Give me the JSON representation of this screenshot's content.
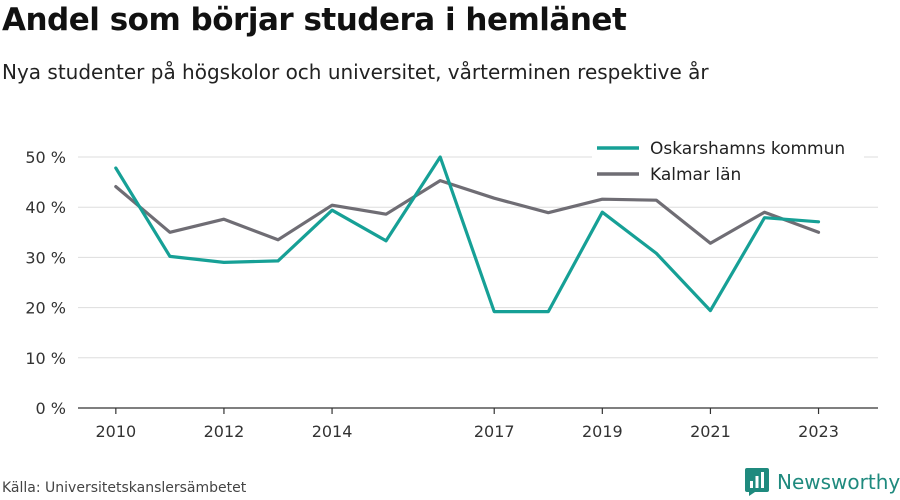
{
  "header": {
    "title": "Andel som börjar studera i hemlänet",
    "subtitle": "Nya studenter på högskolor och universitet, vårterminen respektive år"
  },
  "footer": {
    "source": "Källa: Universitetskanslersämbetet",
    "brand": "Newsworthy",
    "brand_icon": "bar-chart-logo-icon"
  },
  "colors": {
    "accent": "#16a096",
    "secondary": "#6f6d74",
    "grid": "#dddddd",
    "brand": "#1f8a7e"
  },
  "chart_data": {
    "type": "line",
    "x": [
      2010,
      2011,
      2012,
      2013,
      2014,
      2015,
      2016,
      2017,
      2018,
      2019,
      2020,
      2021,
      2022,
      2023
    ],
    "x_tick_labels": [
      "2010",
      "2012",
      "2014",
      "2017",
      "2019",
      "2021",
      "2023"
    ],
    "y_tick_labels": [
      "0 %",
      "10 %",
      "20 %",
      "30 %",
      "40 %",
      "50 %"
    ],
    "ylim": [
      0,
      50
    ],
    "grid": true,
    "legend_position": "top-right",
    "series": [
      {
        "name": "Oskarshamns kommun",
        "color": "#16a096",
        "values": [
          47.8,
          30.2,
          29.0,
          29.3,
          39.4,
          33.3,
          50.0,
          19.2,
          19.2,
          39.0,
          30.8,
          19.4,
          37.9,
          37.1
        ]
      },
      {
        "name": "Kalmar län",
        "color": "#6f6d74",
        "values": [
          44.1,
          35.0,
          37.6,
          33.5,
          40.4,
          38.6,
          45.3,
          41.8,
          38.9,
          41.6,
          41.4,
          32.8,
          39.0,
          35.0
        ]
      }
    ]
  }
}
